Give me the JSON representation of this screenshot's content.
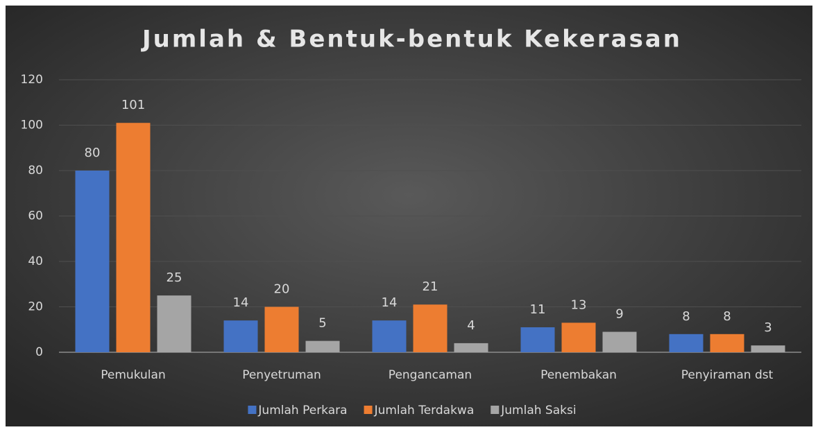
{
  "chart_data": {
    "type": "bar",
    "title": "Jumlah & Bentuk-bentuk Kekerasan",
    "categories": [
      "Pemukulan",
      "Penyetruman",
      "Pengancaman",
      "Penembakan",
      "Penyiraman dst"
    ],
    "series": [
      {
        "name": "Jumlah Perkara",
        "color": "#4472c4",
        "values": [
          80,
          14,
          14,
          11,
          8
        ]
      },
      {
        "name": "Jumlah Terdakwa",
        "color": "#ed7d31",
        "values": [
          101,
          20,
          21,
          13,
          8
        ]
      },
      {
        "name": "Jumlah Saksi",
        "color": "#a5a5a5",
        "values": [
          25,
          5,
          4,
          9,
          3
        ]
      }
    ],
    "ylim": [
      0,
      120
    ],
    "yticks": [
      0,
      20,
      40,
      60,
      80,
      100,
      120
    ],
    "grid": true,
    "legend": "bottom"
  }
}
